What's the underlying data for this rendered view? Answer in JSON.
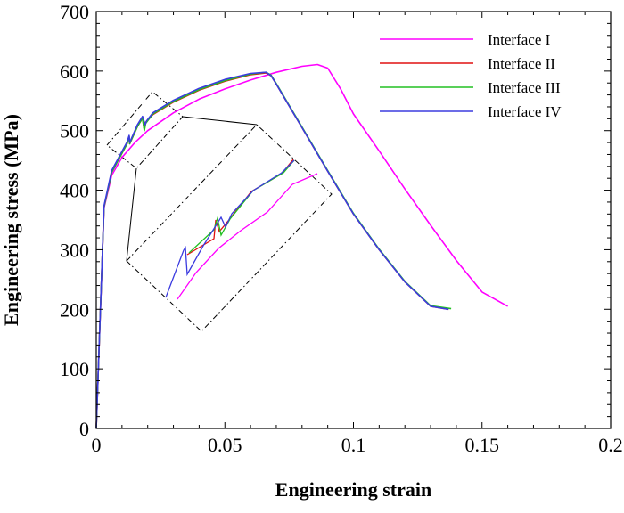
{
  "chart_data": {
    "type": "line",
    "xlabel": "Engineering strain",
    "ylabel": "Engineering stress (MPa)",
    "xlim": [
      0,
      0.2
    ],
    "ylim": [
      0,
      700
    ],
    "xticks": [
      0,
      0.05,
      0.1,
      0.15,
      0.2
    ],
    "xtick_labels": [
      "0",
      "0.05",
      "0.1",
      "0.15",
      "0.2"
    ],
    "yticks": [
      0,
      100,
      200,
      300,
      400,
      500,
      600,
      700
    ],
    "ytick_labels": [
      "0",
      "100",
      "200",
      "300",
      "400",
      "500",
      "600",
      "700"
    ],
    "grid": false,
    "legend_position": "top-right",
    "series": [
      {
        "name": "Interface I",
        "color": "#ff00ff",
        "x": [
          0,
          0.003,
          0.006,
          0.01,
          0.015,
          0.02,
          0.03,
          0.04,
          0.05,
          0.06,
          0.07,
          0.08,
          0.086,
          0.09,
          0.095,
          0.1,
          0.11,
          0.12,
          0.13,
          0.14,
          0.15,
          0.16
        ],
        "y": [
          0,
          370,
          425,
          455,
          480,
          500,
          530,
          553,
          570,
          585,
          598,
          608,
          611,
          605,
          570,
          528,
          466,
          402,
          341,
          282,
          229,
          205
        ]
      },
      {
        "name": "Interface II",
        "color": "#e01010",
        "x": [
          0,
          0.003,
          0.006,
          0.01,
          0.012,
          0.0128,
          0.013,
          0.016,
          0.018,
          0.0185,
          0.019,
          0.022,
          0.03,
          0.04,
          0.05,
          0.06,
          0.066,
          0.068,
          0.07,
          0.08,
          0.09,
          0.1,
          0.11,
          0.12,
          0.13,
          0.137
        ],
        "y": [
          0,
          372,
          430,
          462,
          478,
          490,
          478,
          507,
          521,
          505,
          513,
          527,
          548,
          568,
          583,
          594,
          597,
          592,
          578,
          505,
          432,
          360,
          300,
          246,
          205,
          200
        ]
      },
      {
        "name": "Interface III",
        "color": "#22c022",
        "x": [
          0,
          0.003,
          0.006,
          0.01,
          0.012,
          0.0128,
          0.013,
          0.016,
          0.018,
          0.0187,
          0.0192,
          0.022,
          0.03,
          0.04,
          0.05,
          0.06,
          0.066,
          0.068,
          0.07,
          0.08,
          0.09,
          0.1,
          0.11,
          0.12,
          0.13,
          0.138
        ],
        "y": [
          0,
          372,
          430,
          462,
          478,
          490,
          478,
          507,
          521,
          500,
          512,
          528,
          549,
          569,
          584,
          595,
          598,
          593,
          579,
          506,
          433,
          361,
          301,
          247,
          206,
          201
        ]
      },
      {
        "name": "Interface IV",
        "color": "#3b3bdf",
        "x": [
          0,
          0.003,
          0.006,
          0.01,
          0.012,
          0.0128,
          0.013,
          0.016,
          0.018,
          0.019,
          0.0195,
          0.022,
          0.03,
          0.04,
          0.05,
          0.06,
          0.066,
          0.068,
          0.07,
          0.08,
          0.09,
          0.1,
          0.11,
          0.12,
          0.13,
          0.137
        ],
        "y": [
          0,
          374,
          433,
          465,
          481,
          492,
          480,
          510,
          524,
          510,
          516,
          530,
          551,
          571,
          586,
          596,
          598,
          592,
          578,
          505,
          432,
          360,
          300,
          246,
          205,
          200
        ]
      }
    ]
  }
}
